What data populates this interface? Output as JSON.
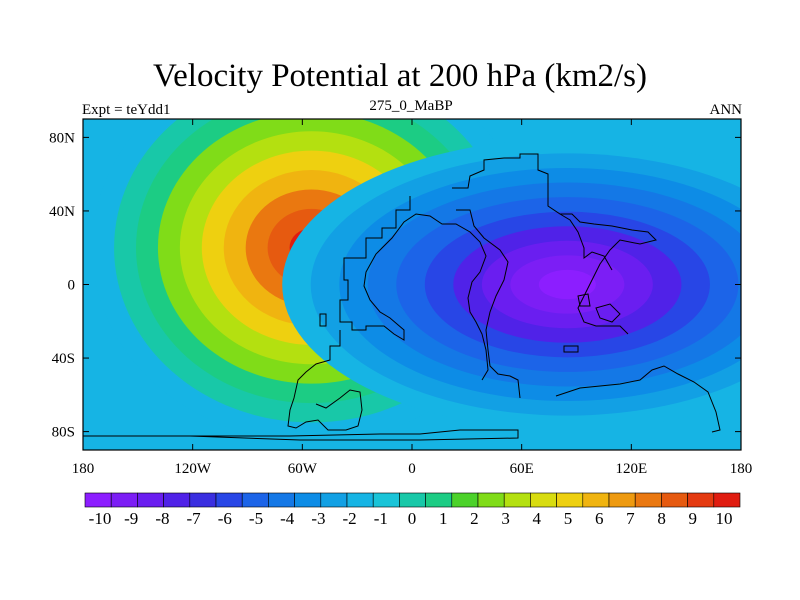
{
  "chart_data": {
    "type": "heatmap",
    "title": "Velocity Potential at 200 hPa (km2/s)",
    "left_label": "Expt = teYdd1",
    "center_label": "275_0_MaBP",
    "right_label": "ANN",
    "x_ticks": [
      "180",
      "120W",
      "60W",
      "0",
      "60E",
      "120E",
      "180"
    ],
    "x_tick_values": [
      -180,
      -120,
      -60,
      0,
      60,
      120,
      180
    ],
    "y_ticks": [
      "80N",
      "40N",
      "0",
      "40S",
      "80S"
    ],
    "y_tick_values": [
      80,
      40,
      0,
      -40,
      -80
    ],
    "xlim": [
      -180,
      180
    ],
    "ylim": [
      -90,
      90
    ],
    "colorbar_labels": [
      "-10",
      "-9",
      "-8",
      "-7",
      "-6",
      "-5",
      "-4",
      "-3",
      "-2",
      "-1",
      "0",
      "1",
      "2",
      "3",
      "4",
      "5",
      "6",
      "7",
      "8",
      "9",
      "10"
    ],
    "colorbar_colors": [
      "#8c1eff",
      "#7c1ef5",
      "#6a1ef0",
      "#5022e8",
      "#3a2ee0",
      "#2846e6",
      "#1c64e8",
      "#1478e6",
      "#0d8ce6",
      "#12a0e4",
      "#16b4e4",
      "#1ac4d8",
      "#18c8a8",
      "#1ccc84",
      "#4cd22a",
      "#80dc18",
      "#b4e010",
      "#d8dc10",
      "#eed010",
      "#f0b410",
      "#ee9a10",
      "#ea7810",
      "#e65a10",
      "#e43a10",
      "#e01c10"
    ],
    "field_centers": [
      {
        "lon": -55,
        "lat": 20,
        "value": 10.5,
        "sx": 40,
        "sy": 48
      },
      {
        "lon": 85,
        "lat": 0,
        "value": -10.5,
        "sx": 52,
        "sy": 36
      }
    ],
    "background_value": -1.5
  }
}
